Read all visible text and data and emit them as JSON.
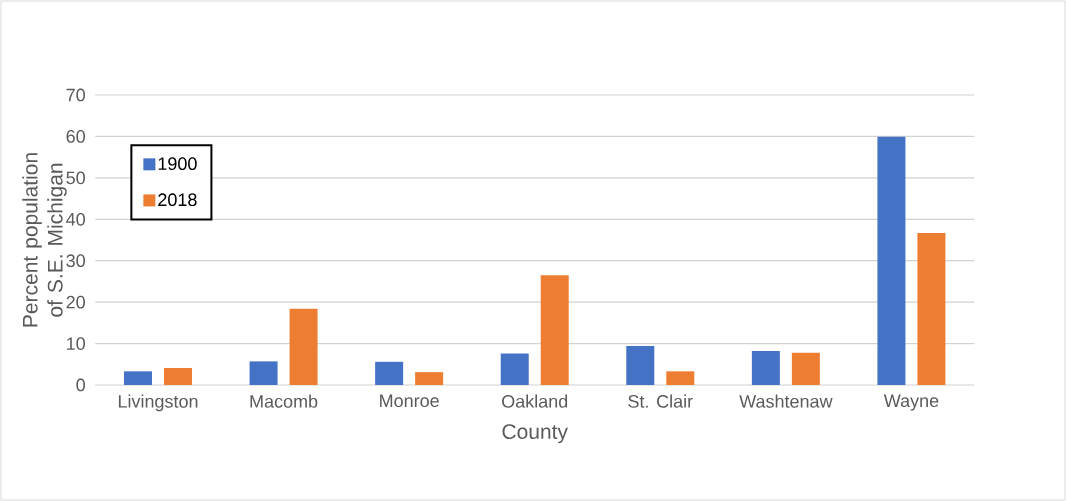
{
  "chart_data": {
    "type": "bar",
    "xlabel": "County",
    "ylabel": "Percent population of S.E. Michigan",
    "categories": [
      "Livingston",
      "Macomb",
      "Monroe",
      "Oakland",
      "St. Clair",
      "Washtenaw",
      "Wayne"
    ],
    "series": [
      {
        "name": "1900",
        "color": "#4472c4",
        "values": [
          3.3,
          5.7,
          5.6,
          7.6,
          9.4,
          8.2,
          59.9
        ]
      },
      {
        "name": "2018",
        "color": "#ed7d31",
        "values": [
          4.1,
          18.4,
          3.1,
          26.5,
          3.3,
          7.8,
          36.7
        ]
      }
    ],
    "ylim": [
      0,
      70
    ],
    "yticks": [
      0,
      10,
      20,
      30,
      40,
      50,
      60,
      70
    ],
    "grid": "y",
    "legend": "top left"
  }
}
